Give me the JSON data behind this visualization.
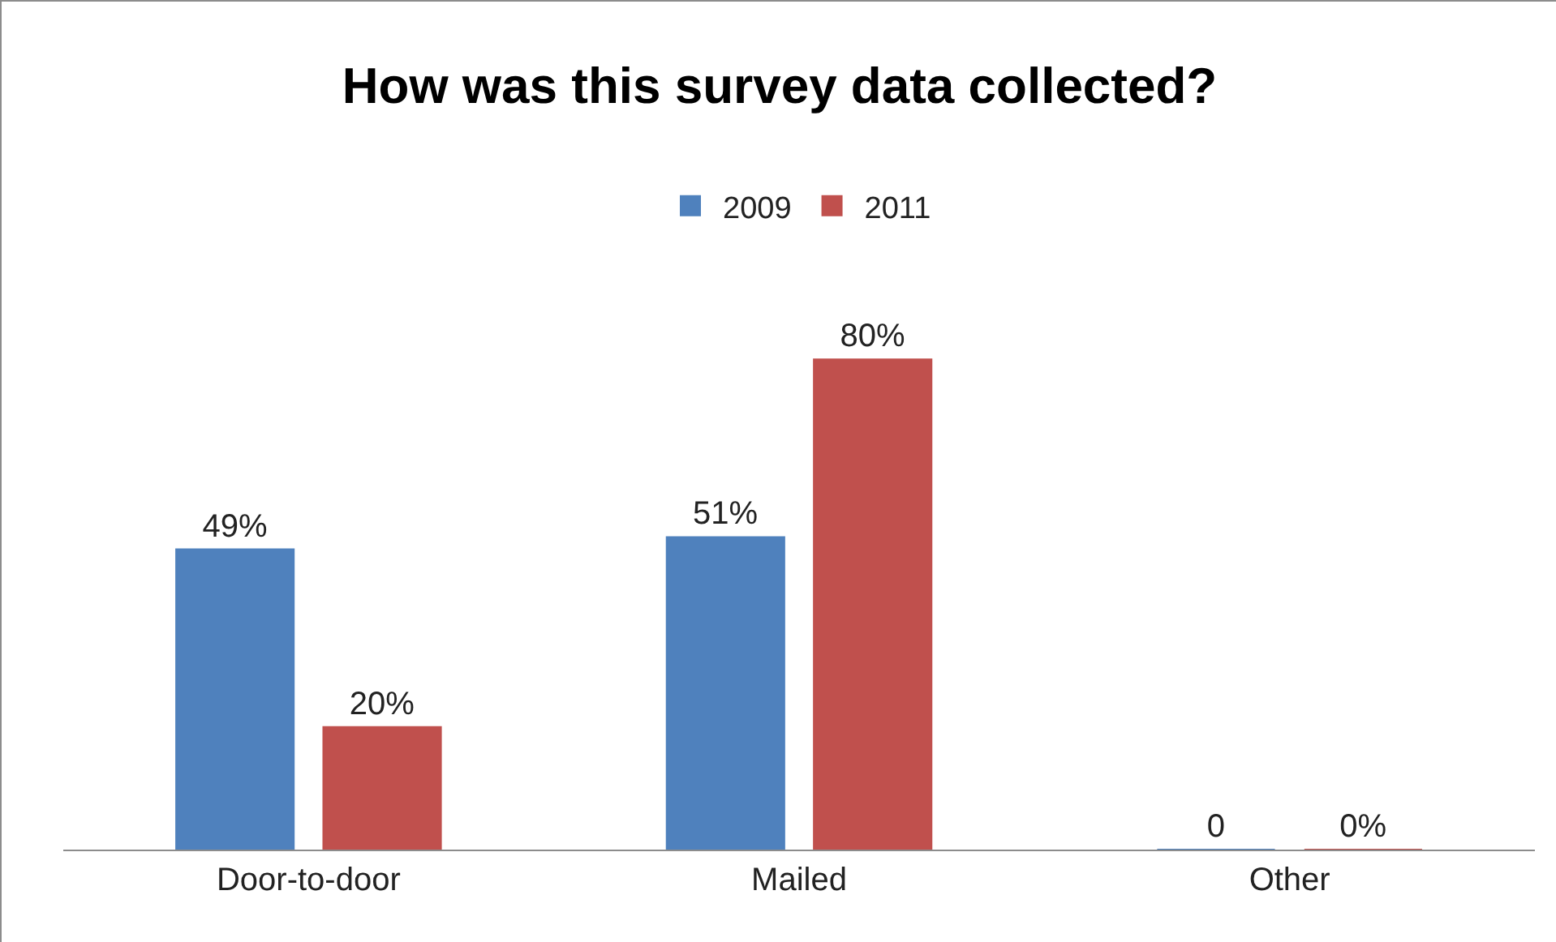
{
  "chart_data": {
    "type": "bar",
    "title": "How was this survey data collected?",
    "categories": [
      "Door-to-door",
      "Mailed",
      "Other"
    ],
    "series": [
      {
        "name": "2009",
        "color": "#4f81bd",
        "values": [
          49,
          51,
          0
        ],
        "value_labels": [
          "49%",
          "51%",
          "0"
        ]
      },
      {
        "name": "2011",
        "color": "#c0504d",
        "values": [
          20,
          80,
          0
        ],
        "value_labels": [
          "20%",
          "80%",
          "0%"
        ]
      }
    ],
    "legend": "top",
    "grid": false
  }
}
